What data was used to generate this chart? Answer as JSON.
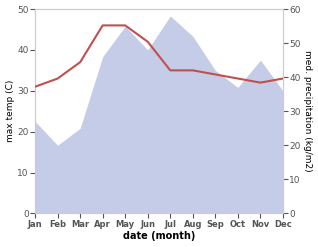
{
  "months": [
    "Jan",
    "Feb",
    "Mar",
    "Apr",
    "May",
    "Jun",
    "Jul",
    "Aug",
    "Sep",
    "Oct",
    "Nov",
    "Dec"
  ],
  "month_indices": [
    0,
    1,
    2,
    3,
    4,
    5,
    6,
    7,
    8,
    9,
    10,
    11
  ],
  "temp_max": [
    31,
    33,
    37,
    46,
    46,
    42,
    35,
    35,
    34,
    33,
    32,
    33
  ],
  "precipitation": [
    27,
    20,
    25,
    46,
    55,
    48,
    58,
    52,
    42,
    37,
    45,
    36
  ],
  "temp_color": "#c0504d",
  "precip_fill_color": "#c5cce8",
  "ylabel_left": "max temp (C)",
  "ylabel_right": "med. precipitation (kg/m2)",
  "xlabel": "date (month)",
  "ylim_left": [
    0,
    50
  ],
  "ylim_right": [
    0,
    60
  ],
  "yticks_left": [
    0,
    10,
    20,
    30,
    40,
    50
  ],
  "yticks_right": [
    0,
    10,
    20,
    30,
    40,
    50,
    60
  ],
  "bg_color": "#ffffff"
}
